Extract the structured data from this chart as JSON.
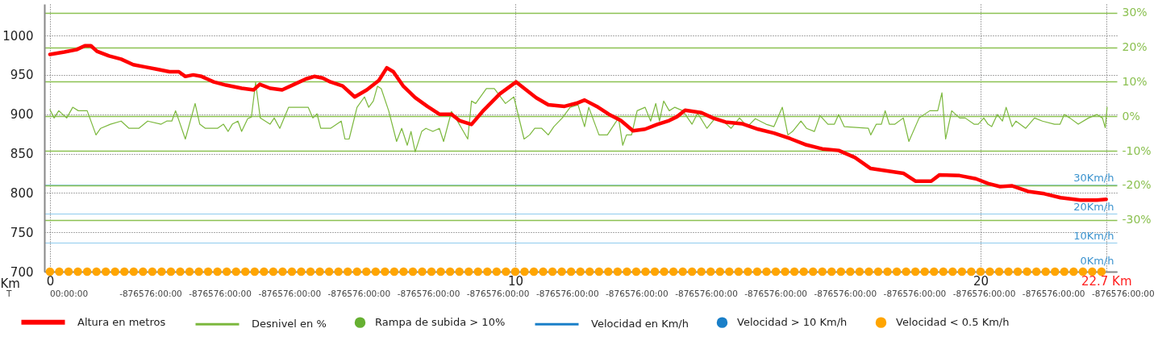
{
  "chart_data": {
    "type": "line",
    "xlabel": "Km",
    "xlim": [
      -0.12,
      22.93
    ],
    "xticks": [
      0,
      10,
      20,
      {
        "value": 22.7,
        "label": "22.7 Km"
      }
    ],
    "annotations": [
      "T",
      "00:00:00",
      "-876576:00:00",
      "-876576:00:00",
      "-876576:00:00",
      "-876576:00:00",
      "-876576:00:00",
      "-876576:00:00",
      "-876576:00:00",
      "-876576:00:00",
      "-876576:00:00",
      "-876576:00:00",
      "-876576:00:00",
      "-876576:00:00",
      "-876576:00:00",
      "-876576:00:00",
      "-876576:00:00"
    ],
    "ylim": [
      700,
      1040
    ],
    "yticks": [
      700,
      750,
      800,
      850,
      900,
      950,
      1000
    ],
    "y2lim": [
      -45,
      32.5
    ],
    "y2ticks": [
      {
        "value": -30,
        "label": "-30%"
      },
      {
        "value": -20,
        "label": "-20%"
      },
      {
        "value": -10,
        "label": "-10%"
      },
      {
        "value": 0,
        "label": "0%"
      },
      {
        "value": 10,
        "label": "10%"
      },
      {
        "value": 20,
        "label": "20%"
      },
      {
        "value": 30,
        "label": "30%"
      }
    ],
    "y3lim": [
      0,
      92
    ],
    "y3ticks": [
      {
        "value": 0,
        "label": "0Km/h"
      },
      {
        "value": 10,
        "label": "10Km/h"
      },
      {
        "value": 20,
        "label": "20Km/h"
      },
      {
        "value": 30,
        "label": "30Km/h"
      }
    ],
    "grid": true,
    "legend": "bottom",
    "series": [
      {
        "name": "Altura en metros",
        "type": "line",
        "axis": "y",
        "color": "#ff0000",
        "x": [
          0,
          0.31,
          0.57,
          0.75,
          0.88,
          1.01,
          1.27,
          1.53,
          1.79,
          2.05,
          2.31,
          2.57,
          2.77,
          2.91,
          3.08,
          3.26,
          3.52,
          3.78,
          4.12,
          4.38,
          4.51,
          4.73,
          4.99,
          5.25,
          5.51,
          5.68,
          5.86,
          6.03,
          6.29,
          6.55,
          6.81,
          7.07,
          7.24,
          7.38,
          7.59,
          7.85,
          8.11,
          8.37,
          8.63,
          8.8,
          9.06,
          9.32,
          9.67,
          10.02,
          10.19,
          10.45,
          10.71,
          11.06,
          11.32,
          11.49,
          11.75,
          12.01,
          12.27,
          12.53,
          12.79,
          13.05,
          13.31,
          13.48,
          13.65,
          14.0,
          14.26,
          14.52,
          14.87,
          15.22,
          15.56,
          15.91,
          16.26,
          16.6,
          16.95,
          17.3,
          17.64,
          17.99,
          18.34,
          18.6,
          18.94,
          19.12,
          19.55,
          19.9,
          20.16,
          20.42,
          20.68,
          21.02,
          21.37,
          21.72,
          22.15,
          22.5,
          22.7
        ],
        "values": [
          976,
          979,
          982,
          987,
          987,
          980,
          974,
          970,
          963,
          960,
          957,
          954,
          954,
          948,
          950,
          948,
          941,
          937,
          933,
          931,
          938,
          933,
          931,
          938,
          945,
          948,
          946,
          941,
          936,
          922,
          931,
          943,
          959,
          954,
          936,
          921,
          910,
          900,
          900,
          892,
          887,
          905,
          926,
          941,
          933,
          921,
          912,
          910,
          914,
          918,
          910,
          900,
          892,
          879,
          881,
          887,
          892,
          897,
          905,
          902,
          895,
          890,
          888,
          881,
          876,
          869,
          861,
          856,
          854,
          845,
          831,
          828,
          825,
          815,
          815,
          823,
          822,
          818,
          812,
          808,
          809,
          802,
          799,
          794,
          791,
          791,
          792
        ]
      },
      {
        "name": "Desnivel en %",
        "type": "line",
        "axis": "y2",
        "color": "#7cb83e",
        "x": [
          0,
          0.09,
          0.19,
          0.36,
          0.49,
          0.61,
          0.8,
          0.99,
          1.09,
          1.3,
          1.53,
          1.7,
          1.91,
          2.1,
          2.39,
          2.51,
          2.62,
          2.7,
          2.91,
          3.12,
          3.22,
          3.34,
          3.6,
          3.73,
          3.83,
          3.92,
          4.04,
          4.12,
          4.25,
          4.33,
          4.42,
          4.52,
          4.73,
          4.82,
          4.94,
          5.13,
          5.55,
          5.65,
          5.74,
          5.82,
          6.03,
          6.26,
          6.34,
          6.43,
          6.6,
          6.76,
          6.85,
          6.95,
          7.04,
          7.12,
          7.28,
          7.45,
          7.56,
          7.68,
          7.76,
          7.85,
          7.99,
          8.08,
          8.23,
          8.37,
          8.46,
          8.63,
          8.72,
          8.98,
          9.06,
          9.15,
          9.38,
          9.55,
          9.79,
          9.97,
          10.19,
          10.31,
          10.42,
          10.57,
          10.71,
          10.83,
          11.01,
          11.18,
          11.35,
          11.49,
          11.58,
          11.8,
          11.98,
          12.22,
          12.31,
          12.39,
          12.5,
          12.62,
          12.79,
          12.91,
          13.02,
          13.1,
          13.19,
          13.31,
          13.43,
          13.6,
          13.8,
          13.92,
          14.12,
          14.3,
          14.47,
          14.64,
          14.82,
          14.99,
          15.16,
          15.39,
          15.56,
          15.74,
          15.86,
          15.96,
          16.14,
          16.26,
          16.43,
          16.55,
          16.72,
          16.86,
          16.95,
          17.07,
          17.59,
          17.64,
          17.76,
          17.87,
          17.95,
          18.04,
          18.16,
          18.34,
          18.46,
          18.68,
          18.91,
          19.08,
          19.17,
          19.25,
          19.38,
          19.55,
          19.67,
          19.86,
          19.95,
          20.07,
          20.16,
          20.24,
          20.36,
          20.47,
          20.55,
          20.68,
          20.76,
          20.97,
          21.16,
          21.33,
          21.59,
          21.71,
          21.8,
          21.92,
          22.1,
          22.32,
          22.5,
          22.62,
          22.68,
          22.72
        ],
        "values": [
          1.9,
          -0.5,
          1.6,
          -0.5,
          2.6,
          1.6,
          1.6,
          -5.4,
          -3.5,
          -2.3,
          -1.4,
          -3.5,
          -3.5,
          -1.4,
          -2.3,
          -1.4,
          -1.4,
          1.6,
          -6.6,
          3.7,
          -2.3,
          -3.5,
          -3.5,
          -2.3,
          -4.4,
          -2.3,
          -1.4,
          -4.4,
          -0.7,
          -0.2,
          9.8,
          -0.5,
          -2.3,
          -0.5,
          -3.5,
          2.6,
          2.6,
          -0.5,
          0.7,
          -3.5,
          -3.5,
          -1.4,
          -6.6,
          -6.6,
          2.6,
          5.6,
          2.6,
          4.4,
          8.7,
          8.0,
          1.6,
          -7.3,
          -3.5,
          -8.4,
          -4.4,
          -10.3,
          -4.4,
          -3.5,
          -4.4,
          -3.5,
          -7.3,
          1.4,
          -0.5,
          -6.6,
          4.4,
          3.7,
          8.0,
          8.0,
          3.7,
          5.6,
          -6.6,
          -5.4,
          -3.5,
          -3.5,
          -5.4,
          -3.0,
          -0.5,
          2.6,
          3.3,
          -3.0,
          2.6,
          -5.4,
          -5.4,
          -0.5,
          -8.4,
          -5.4,
          -5.4,
          1.6,
          2.6,
          -1.4,
          3.7,
          -1.4,
          4.4,
          1.6,
          2.6,
          1.6,
          -2.3,
          0.9,
          -3.5,
          -0.5,
          -1.4,
          -3.5,
          -0.5,
          -3.0,
          -0.7,
          -2.3,
          -3.0,
          2.6,
          -5.4,
          -4.4,
          -1.4,
          -3.5,
          -4.4,
          0.2,
          -2.3,
          -2.3,
          0.5,
          -3.0,
          -3.5,
          -5.4,
          -2.3,
          -2.3,
          1.6,
          -2.3,
          -2.3,
          -0.5,
          -7.3,
          -0.5,
          1.6,
          1.6,
          6.8,
          -6.6,
          1.6,
          -0.5,
          -0.5,
          -2.3,
          -2.3,
          -0.5,
          -2.3,
          -3.0,
          0.5,
          -1.4,
          2.6,
          -3.0,
          -1.4,
          -3.5,
          -0.5,
          -1.4,
          -2.3,
          -2.3,
          0.5,
          -0.5,
          -2.3,
          -0.5,
          0.5,
          -0.5,
          -3.3,
          2.6
        ]
      },
      {
        "name": "Rampa de subida > 10%",
        "type": "scatter",
        "axis": "y2",
        "color": "#66b032"
      },
      {
        "name": "Velocidad en Km/h",
        "type": "line",
        "axis": "y3",
        "color": "#1a7fc8"
      },
      {
        "name": "Velocidad > 10 Km/h",
        "type": "scatter",
        "axis": "y3",
        "color": "#1a7fc8"
      },
      {
        "name": "Velocidad < 0.5 Km/h",
        "type": "scatter",
        "axis": "y3",
        "color": "#ffa500",
        "x": [
          0,
          0.2,
          0.4,
          0.6,
          0.8,
          1,
          1.2,
          1.4,
          1.6,
          1.8,
          2,
          2.2,
          2.4,
          2.6,
          2.8,
          3,
          3.2,
          3.4,
          3.6,
          3.8,
          4,
          4.2,
          4.4,
          4.6,
          4.8,
          5,
          5.2,
          5.4,
          5.6,
          5.8,
          6,
          6.2,
          6.4,
          6.6,
          6.8,
          7,
          7.2,
          7.4,
          7.6,
          7.8,
          8,
          8.2,
          8.4,
          8.6,
          8.8,
          9,
          9.2,
          9.4,
          9.6,
          9.8,
          10,
          10.2,
          10.4,
          10.6,
          10.8,
          11,
          11.2,
          11.4,
          11.6,
          11.8,
          12,
          12.2,
          12.4,
          12.6,
          12.8,
          13,
          13.2,
          13.4,
          13.6,
          13.8,
          14,
          14.2,
          14.4,
          14.6,
          14.8,
          15,
          15.2,
          15.4,
          15.6,
          15.8,
          16,
          16.2,
          16.4,
          16.6,
          16.8,
          17,
          17.2,
          17.4,
          17.6,
          17.8,
          18,
          18.2,
          18.4,
          18.6,
          18.8,
          19,
          19.2,
          19.4,
          19.6,
          19.8,
          20,
          20.2,
          20.4,
          20.6,
          20.8,
          21,
          21.2,
          21.4,
          21.6,
          21.8,
          22,
          22.2,
          22.4,
          22.6
        ],
        "values": [
          0,
          0,
          0,
          0,
          0,
          0,
          0,
          0,
          0,
          0,
          0,
          0,
          0,
          0,
          0,
          0,
          0,
          0,
          0,
          0,
          0,
          0,
          0,
          0,
          0,
          0,
          0,
          0,
          0,
          0,
          0,
          0,
          0,
          0,
          0,
          0,
          0,
          0,
          0,
          0,
          0,
          0,
          0,
          0,
          0,
          0,
          0,
          0,
          0,
          0,
          0,
          0,
          0,
          0,
          0,
          0,
          0,
          0,
          0,
          0,
          0,
          0,
          0,
          0,
          0,
          0,
          0,
          0,
          0,
          0,
          0,
          0,
          0,
          0,
          0,
          0,
          0,
          0,
          0,
          0,
          0,
          0,
          0,
          0,
          0,
          0,
          0,
          0,
          0,
          0,
          0,
          0,
          0,
          0,
          0,
          0,
          0,
          0,
          0,
          0,
          0,
          0,
          0,
          0,
          0,
          0,
          0,
          0,
          0,
          0,
          0,
          0,
          0,
          0
        ]
      }
    ]
  }
}
